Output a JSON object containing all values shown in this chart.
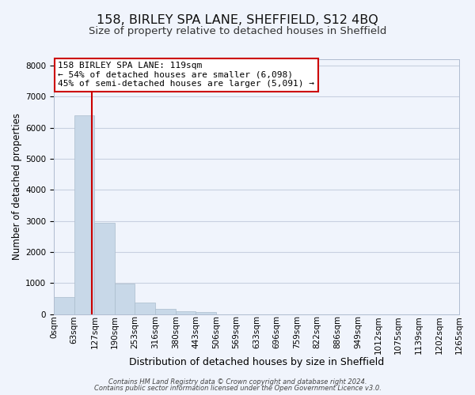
{
  "title1": "158, BIRLEY SPA LANE, SHEFFIELD, S12 4BQ",
  "title2": "Size of property relative to detached houses in Sheffield",
  "xlabel": "Distribution of detached houses by size in Sheffield",
  "ylabel": "Number of detached properties",
  "bar_edges": [
    0,
    63,
    127,
    190,
    253,
    316,
    380,
    443,
    506,
    569,
    633,
    696,
    759,
    822,
    886,
    949,
    1012,
    1075,
    1139,
    1202,
    1265
  ],
  "bar_heights": [
    560,
    6400,
    2950,
    990,
    370,
    175,
    100,
    75,
    0,
    0,
    0,
    0,
    0,
    0,
    0,
    0,
    0,
    0,
    0,
    0
  ],
  "bar_color": "#c8d8e8",
  "bar_edgecolor": "#aabccc",
  "ylim": [
    0,
    8200
  ],
  "yticks": [
    0,
    1000,
    2000,
    3000,
    4000,
    5000,
    6000,
    7000,
    8000
  ],
  "vline_x": 119,
  "vline_color": "#cc0000",
  "annotation_line1": "158 BIRLEY SPA LANE: 119sqm",
  "annotation_line2": "← 54% of detached houses are smaller (6,098)",
  "annotation_line3": "45% of semi-detached houses are larger (5,091) →",
  "footer1": "Contains HM Land Registry data © Crown copyright and database right 2024.",
  "footer2": "Contains public sector information licensed under the Open Government Licence v3.0.",
  "bg_color": "#f0f4fc",
  "grid_color": "#c8d0e0",
  "title1_fontsize": 11.5,
  "title2_fontsize": 9.5,
  "xlabel_fontsize": 9,
  "ylabel_fontsize": 8.5,
  "tick_fontsize": 7.5,
  "ann_fontsize": 8,
  "footer_fontsize": 6,
  "xtick_labels": [
    "0sqm",
    "63sqm",
    "127sqm",
    "190sqm",
    "253sqm",
    "316sqm",
    "380sqm",
    "443sqm",
    "506sqm",
    "569sqm",
    "633sqm",
    "696sqm",
    "759sqm",
    "822sqm",
    "886sqm",
    "949sqm",
    "1012sqm",
    "1075sqm",
    "1139sqm",
    "1202sqm",
    "1265sqm"
  ]
}
